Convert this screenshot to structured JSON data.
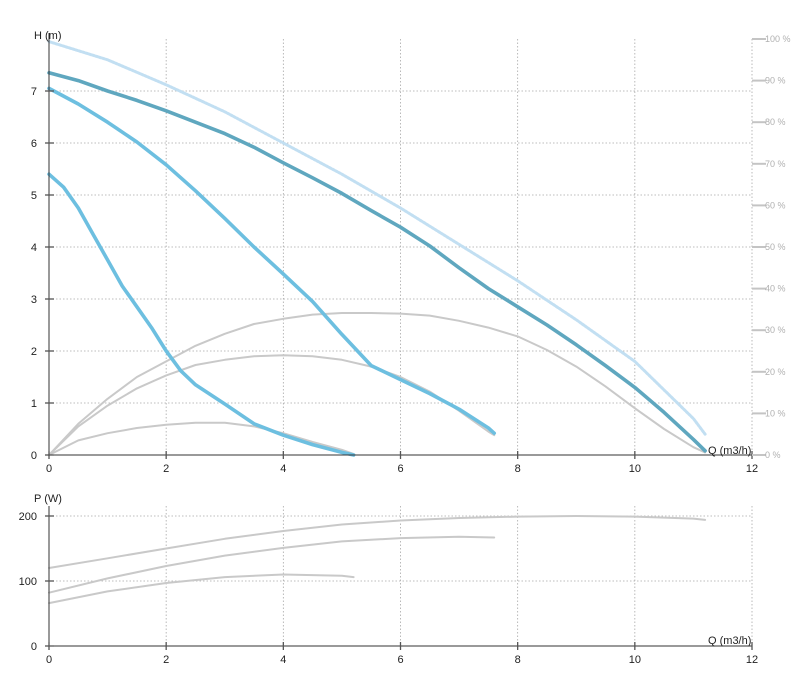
{
  "colors": {
    "pump_curve_max": "#5fa7bf",
    "pump_curve": "#6dbfe0",
    "efficiency_curve": "#c9c9c9",
    "efficiency_envelope": "#c2dff2",
    "power_curve": "#c9c9c9"
  },
  "chart_data": [
    {
      "type": "line",
      "xlabel": "Q (m3/h)",
      "ylabel": "H (m)",
      "y2label": "",
      "xlim": [
        0,
        12
      ],
      "ylim": [
        0,
        8
      ],
      "y2lim": [
        0,
        100
      ],
      "grid": true,
      "x_ticks": [
        "0",
        "2",
        "4",
        "6",
        "8",
        "10",
        "12"
      ],
      "y_ticks": [
        "0",
        "1",
        "2",
        "3",
        "4",
        "5",
        "6",
        "7"
      ],
      "y2_ticks": [
        "0 %",
        "10 %",
        "20 %",
        "30 %",
        "40 %",
        "50 %",
        "60 %",
        "70 %",
        "80 %",
        "90 %",
        "100 %"
      ],
      "series": [
        {
          "role": "head_max",
          "x": [
            0,
            0.5,
            1,
            1.5,
            2,
            2.5,
            3,
            3.5,
            4,
            4.5,
            5,
            5.5,
            6,
            6.5,
            7,
            7.5,
            8,
            8.5,
            9,
            9.5,
            10,
            10.5,
            11,
            11.2
          ],
          "y": [
            7.35,
            7.2,
            7.0,
            6.82,
            6.62,
            6.4,
            6.18,
            5.92,
            5.62,
            5.33,
            5.03,
            4.7,
            4.38,
            4.02,
            3.6,
            3.2,
            2.85,
            2.5,
            2.12,
            1.72,
            1.3,
            0.82,
            0.3,
            0.08
          ]
        },
        {
          "role": "head_mid",
          "x": [
            0,
            0.5,
            1,
            1.5,
            2,
            2.5,
            3,
            3.5,
            4,
            4.5,
            5,
            5.5,
            6,
            6.5,
            7,
            7.5,
            7.6
          ],
          "y": [
            7.05,
            6.75,
            6.4,
            6.02,
            5.58,
            5.08,
            4.55,
            4.0,
            3.48,
            2.95,
            2.32,
            1.72,
            1.45,
            1.18,
            0.88,
            0.52,
            0.42
          ]
        },
        {
          "role": "head_min",
          "x": [
            0,
            0.25,
            0.5,
            0.75,
            1,
            1.25,
            1.5,
            1.75,
            2,
            2.25,
            2.5,
            3,
            3.5,
            4,
            4.5,
            5,
            5.2
          ],
          "y": [
            5.4,
            5.15,
            4.75,
            4.25,
            3.75,
            3.25,
            2.85,
            2.45,
            2.0,
            1.62,
            1.35,
            0.98,
            0.6,
            0.38,
            0.2,
            0.05,
            0.0
          ]
        },
        {
          "role": "efficiency_envelope",
          "x": [
            0,
            1,
            2,
            3,
            4,
            5,
            6,
            7,
            8,
            9,
            10,
            11,
            11.2
          ],
          "y": [
            7.95,
            7.6,
            7.12,
            6.6,
            6.0,
            5.4,
            4.75,
            4.05,
            3.35,
            2.6,
            1.8,
            0.7,
            0.4
          ]
        },
        {
          "role": "efficiency_max",
          "x": [
            0,
            0.5,
            1,
            1.5,
            2,
            2.5,
            3,
            3.5,
            4,
            4.5,
            5,
            5.5,
            6,
            6.5,
            7,
            7.5,
            8,
            8.5,
            9,
            9.5,
            10,
            10.5,
            11,
            11.2
          ],
          "y": [
            0.0,
            0.6,
            1.08,
            1.5,
            1.8,
            2.1,
            2.33,
            2.52,
            2.62,
            2.7,
            2.73,
            2.73,
            2.72,
            2.68,
            2.58,
            2.45,
            2.28,
            2.02,
            1.7,
            1.32,
            0.9,
            0.5,
            0.15,
            0.05
          ]
        },
        {
          "role": "efficiency_mid",
          "x": [
            0,
            0.5,
            1,
            1.5,
            2,
            2.5,
            3,
            3.5,
            4,
            4.5,
            5,
            5.5,
            6,
            6.5,
            7,
            7.5,
            7.6
          ],
          "y": [
            0.0,
            0.55,
            0.95,
            1.28,
            1.53,
            1.73,
            1.83,
            1.9,
            1.92,
            1.9,
            1.83,
            1.7,
            1.5,
            1.22,
            0.85,
            0.45,
            0.38
          ]
        },
        {
          "role": "efficiency_min",
          "x": [
            0,
            0.5,
            1,
            1.5,
            2,
            2.5,
            3,
            3.5,
            4,
            4.5,
            5,
            5.2
          ],
          "y": [
            0.0,
            0.28,
            0.42,
            0.52,
            0.58,
            0.62,
            0.62,
            0.55,
            0.42,
            0.25,
            0.1,
            0.02
          ]
        }
      ]
    },
    {
      "type": "line",
      "xlabel": "Q (m3/h)",
      "ylabel": "P (W)",
      "xlim": [
        0,
        12
      ],
      "ylim": [
        0,
        200
      ],
      "grid": true,
      "x_ticks": [
        "0",
        "2",
        "4",
        "6",
        "8",
        "10",
        "12"
      ],
      "y_ticks": [
        "0",
        "100",
        "200"
      ],
      "series": [
        {
          "role": "power_max",
          "x": [
            0,
            1,
            2,
            3,
            4,
            5,
            6,
            7,
            8,
            9,
            10,
            11,
            11.2
          ],
          "y": [
            120,
            135,
            150,
            165,
            177,
            187,
            193,
            197,
            199,
            200,
            199,
            196,
            194
          ]
        },
        {
          "role": "power_mid",
          "x": [
            0,
            1,
            2,
            3,
            4,
            5,
            6,
            7,
            7.6
          ],
          "y": [
            82,
            104,
            123,
            139,
            151,
            161,
            166,
            168,
            167
          ]
        },
        {
          "role": "power_min",
          "x": [
            0,
            1,
            2,
            3,
            4,
            5,
            5.2
          ],
          "y": [
            66,
            84,
            97,
            106,
            110,
            108,
            106
          ]
        }
      ]
    }
  ]
}
